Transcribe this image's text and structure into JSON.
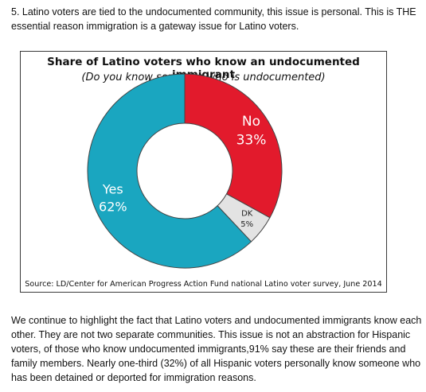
{
  "intro_text": "5. Latino voters are tied to the undocumented community, this issue is personal. This is THE essential reason immigration is a gateway issue for Latino voters.",
  "chart_data": {
    "type": "pie",
    "donut": true,
    "title": "Share of Latino voters who know an undocumented immigrant",
    "subtitle": "(Do you know someone who is undocumented)",
    "slices": [
      {
        "label": "No",
        "value": 33,
        "value_label": "33%",
        "color": "#e21a2c"
      },
      {
        "label": "DK",
        "value": 5,
        "value_label": "5%",
        "color": "#e3e3e3"
      },
      {
        "label": "Yes",
        "value": 62,
        "value_label": "62%",
        "color": "#1aa6c0"
      }
    ],
    "source": "Source: LD/Center for American Progress Action Fund national Latino voter survey, June 2014"
  },
  "outro_text": "We continue to highlight the fact that Latino voters and undocumented immigrants know each other. They are not two separate communities. This issue is not an abstraction for Hispanic voters, of those who know undocumented immigrants,91% say these are their friends and family members. Nearly one-third (32%) of all Hispanic voters personally know someone who has been detained or deported for immigration reasons."
}
